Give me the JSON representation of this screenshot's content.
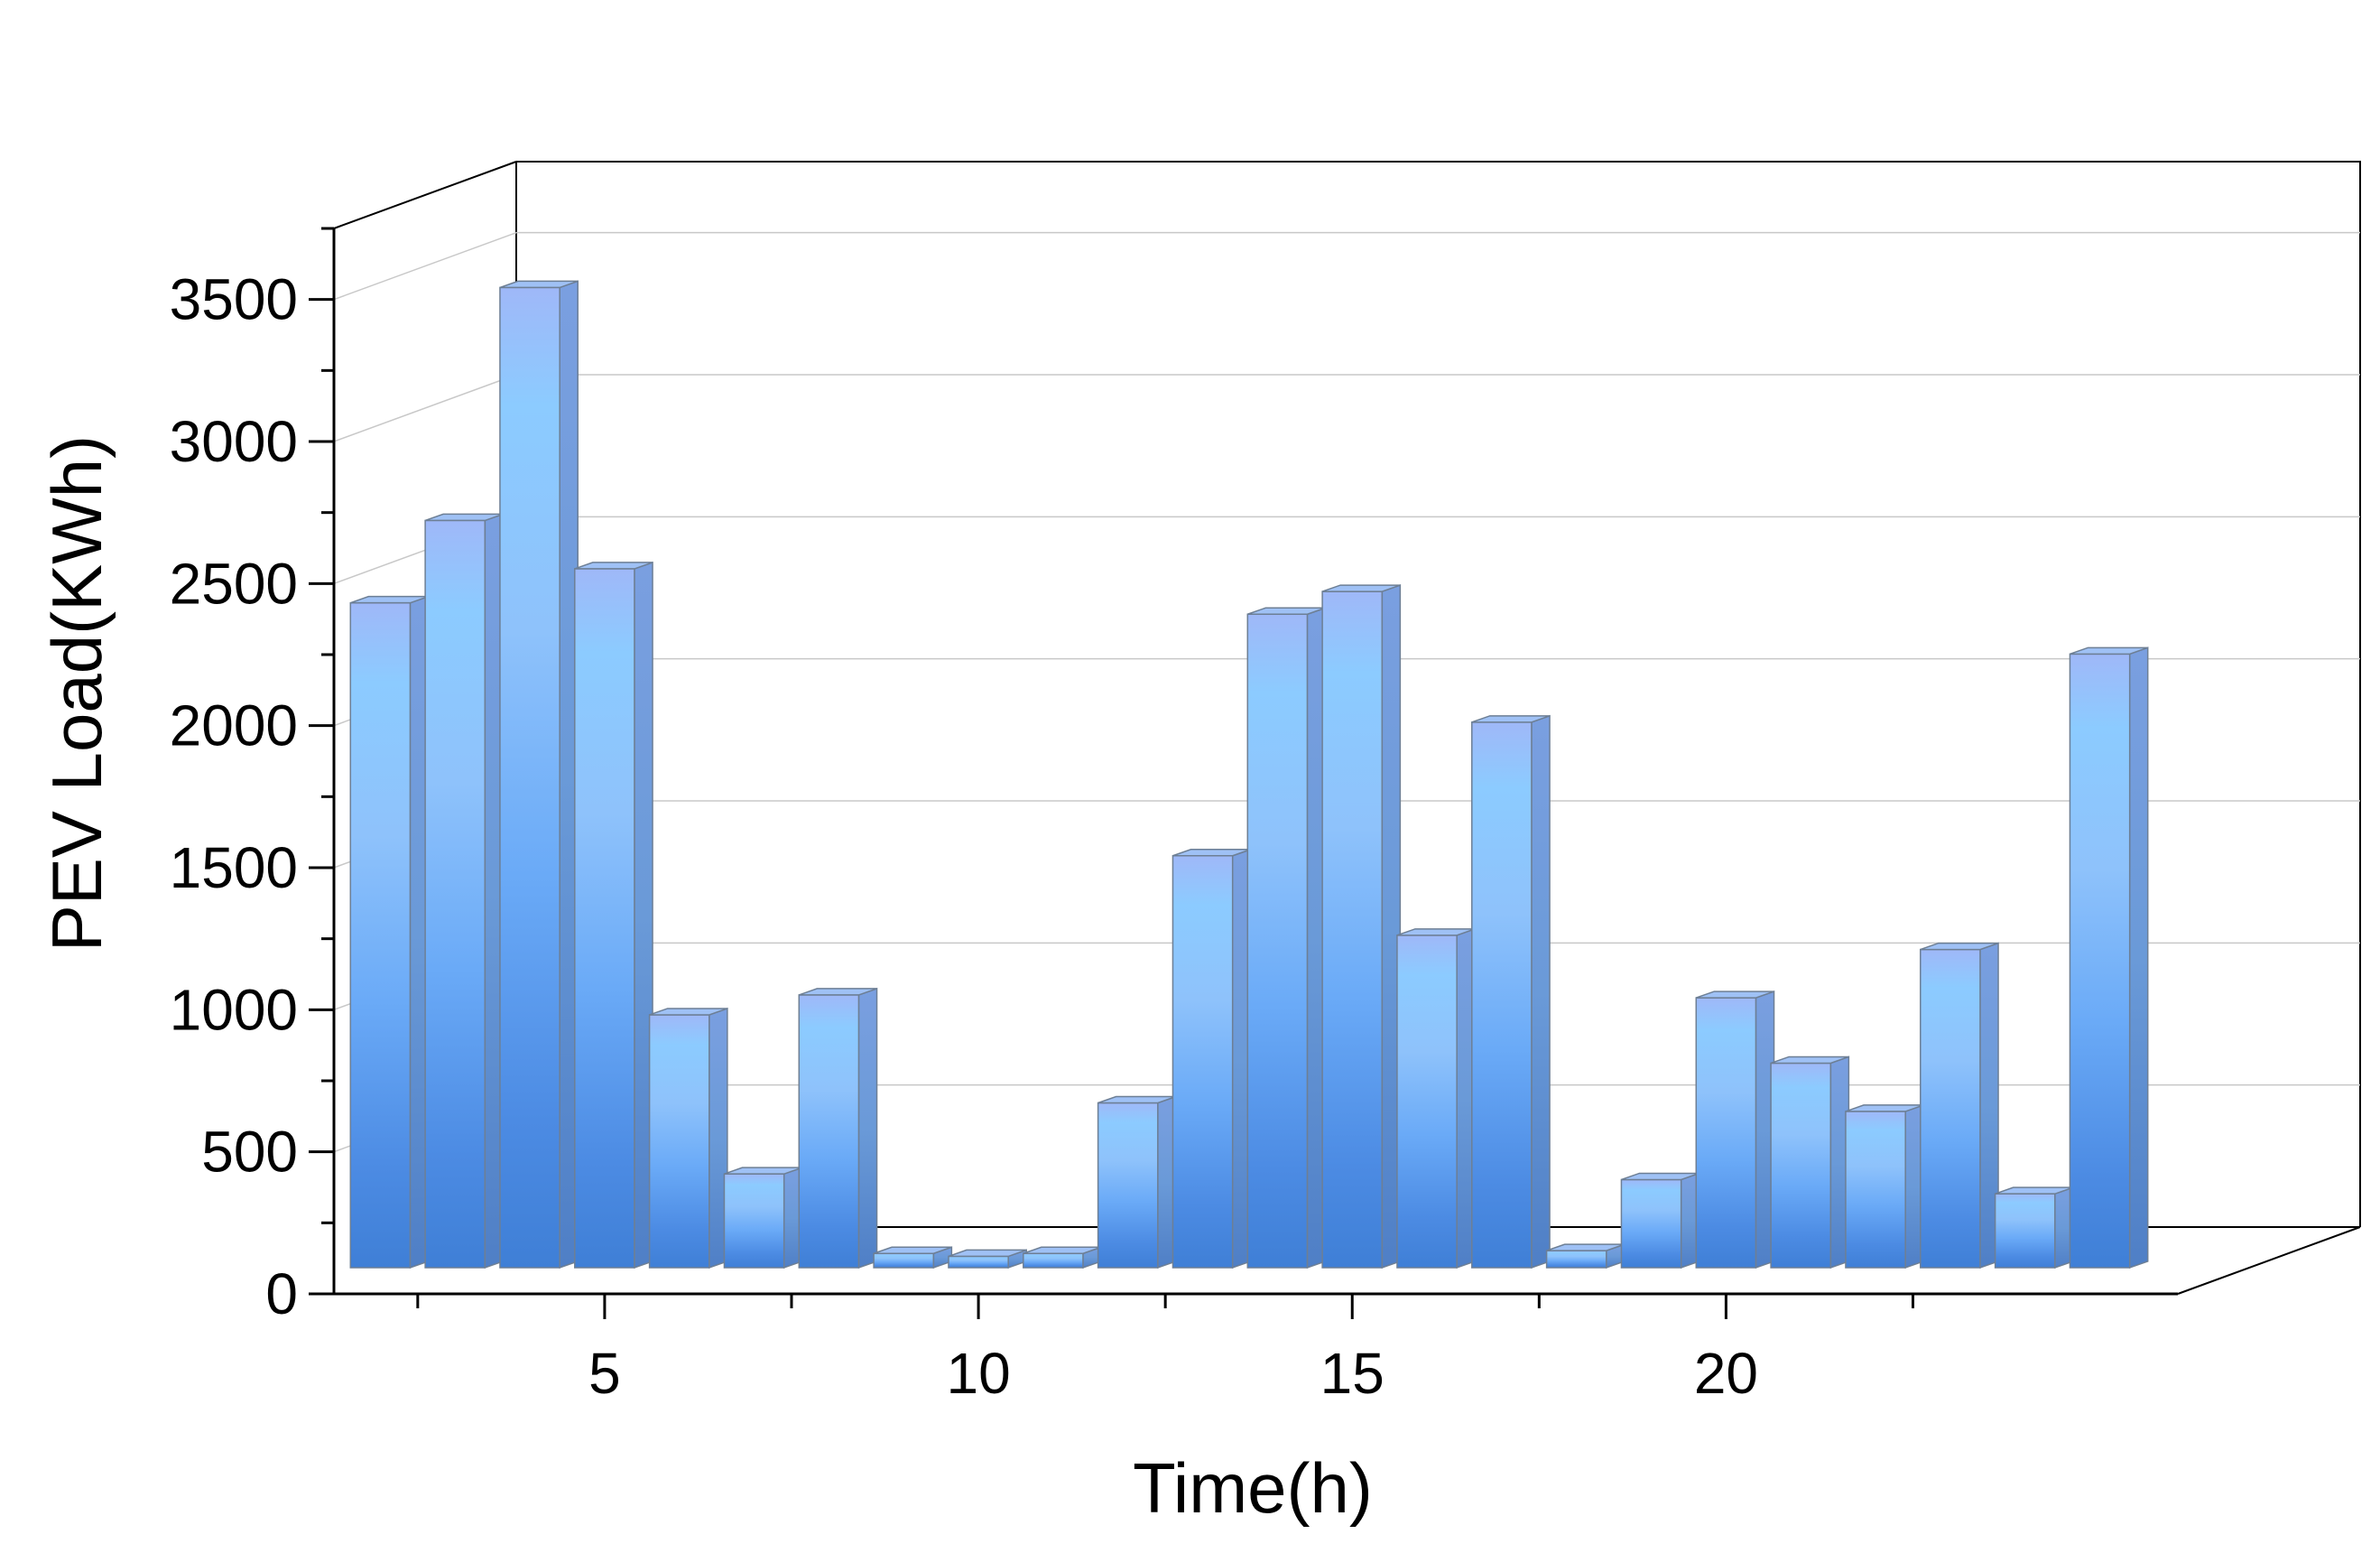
{
  "chart_data": {
    "type": "bar",
    "style": "3d",
    "title": "",
    "xlabel": "Time(h)",
    "ylabel": "PEV Load(KWh)",
    "x": [
      2,
      3,
      4,
      5,
      6,
      7,
      8,
      9,
      10,
      11,
      12,
      13,
      14,
      15,
      16,
      17,
      18,
      19,
      20,
      21,
      22,
      23,
      24,
      25
    ],
    "values": [
      2340,
      2630,
      3450,
      2460,
      890,
      330,
      960,
      50,
      40,
      50,
      580,
      1450,
      2300,
      2380,
      1170,
      1920,
      60,
      310,
      950,
      720,
      550,
      1120,
      260,
      2160
    ],
    "xticks": [
      5,
      10,
      15,
      20
    ],
    "xtick_labels": [
      "5",
      "10",
      "15",
      "20"
    ],
    "yticks": [
      0,
      500,
      1000,
      1500,
      2000,
      2500,
      3000,
      3500
    ],
    "ytick_labels": [
      "0",
      "500",
      "1000",
      "1500",
      "2000",
      "2500",
      "3000",
      "3500"
    ],
    "ylim": [
      0,
      3750
    ],
    "grid": true,
    "legend": "none",
    "colors": {
      "bar_light": "#8ccbff",
      "bar_mid": "#6aaaf7",
      "bar_dark": "#3f7fd6",
      "bar_top": "#9fc1f5",
      "bar_side": "#5b8fd2",
      "bar_edge": "#6d7f95",
      "grid": "#c8c8c8",
      "axis": "#000000"
    }
  }
}
